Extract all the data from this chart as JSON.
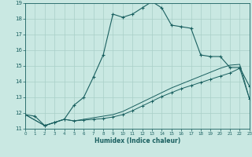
{
  "xlabel": "Humidex (Indice chaleur)",
  "xlim": [
    0,
    23
  ],
  "ylim": [
    11,
    19
  ],
  "yticks": [
    11,
    12,
    13,
    14,
    15,
    16,
    17,
    18,
    19
  ],
  "xticks": [
    0,
    1,
    2,
    3,
    4,
    5,
    6,
    7,
    8,
    9,
    10,
    11,
    12,
    13,
    14,
    15,
    16,
    17,
    18,
    19,
    20,
    21,
    22,
    23
  ],
  "bg_color": "#c9e8e2",
  "grid_color": "#a8cfc8",
  "line_color": "#1a6060",
  "line1_x": [
    0,
    1,
    2,
    3,
    4,
    5,
    6,
    7,
    8,
    9,
    10,
    11,
    12,
    13,
    14,
    15,
    16,
    17,
    18,
    19,
    20,
    21,
    22,
    23
  ],
  "line1_y": [
    11.9,
    11.8,
    11.2,
    11.4,
    11.6,
    12.5,
    13.0,
    14.3,
    15.7,
    18.3,
    18.1,
    18.3,
    18.7,
    19.1,
    18.7,
    17.6,
    17.5,
    17.4,
    15.7,
    15.6,
    15.6,
    14.9,
    14.9,
    13.7
  ],
  "line2_x": [
    0,
    2,
    3,
    4,
    5,
    6,
    7,
    8,
    9,
    10,
    11,
    12,
    13,
    14,
    15,
    16,
    17,
    18,
    19,
    20,
    21,
    22,
    23
  ],
  "line2_y": [
    11.9,
    11.2,
    11.4,
    11.6,
    11.5,
    11.55,
    11.6,
    11.65,
    11.75,
    11.9,
    12.15,
    12.45,
    12.75,
    13.05,
    13.3,
    13.55,
    13.75,
    13.95,
    14.15,
    14.35,
    14.55,
    14.85,
    12.9
  ],
  "line3_x": [
    0,
    2,
    3,
    4,
    5,
    6,
    7,
    8,
    9,
    10,
    11,
    12,
    13,
    14,
    15,
    16,
    17,
    18,
    19,
    20,
    21,
    22,
    23
  ],
  "line3_y": [
    11.9,
    11.2,
    11.4,
    11.6,
    11.5,
    11.6,
    11.7,
    11.8,
    11.9,
    12.1,
    12.4,
    12.7,
    13.0,
    13.3,
    13.6,
    13.85,
    14.1,
    14.35,
    14.6,
    14.85,
    15.05,
    15.1,
    12.9
  ]
}
